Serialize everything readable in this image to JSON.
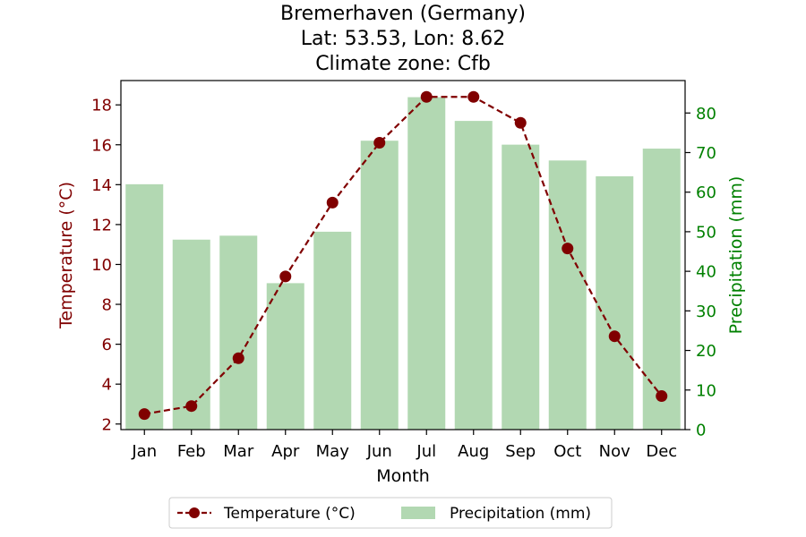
{
  "title_lines": [
    "Bremerhaven (Germany)",
    "Lat: 53.53, Lon: 8.62",
    "Climate zone: Cfb"
  ],
  "colors": {
    "temperature": "#800000",
    "precipitation": "#008000",
    "precipitation_bar": "#b2d8b2"
  },
  "chart_data": {
    "type": "bar",
    "categories": [
      "Jan",
      "Feb",
      "Mar",
      "Apr",
      "May",
      "Jun",
      "Jul",
      "Aug",
      "Sep",
      "Oct",
      "Nov",
      "Dec"
    ],
    "series": [
      {
        "name": "Temperature (°C)",
        "type": "line",
        "axis": "left",
        "values": [
          2.5,
          2.9,
          5.3,
          9.4,
          13.1,
          16.1,
          18.4,
          18.4,
          17.1,
          10.8,
          6.4,
          3.4
        ]
      },
      {
        "name": "Precipitation (mm)",
        "type": "bar",
        "axis": "right",
        "values": [
          62,
          48,
          49,
          37,
          50,
          73,
          84,
          78,
          72,
          68,
          64,
          71
        ]
      }
    ],
    "xlabel": "Month",
    "ylabel_left": "Temperature (°C)",
    "ylabel_right": "Precipitation (mm)",
    "ylim_left": [
      1.72,
      19.22
    ],
    "ylim_right": [
      0,
      88.2
    ],
    "yticks_left": [
      2,
      4,
      6,
      8,
      10,
      12,
      14,
      16,
      18
    ],
    "yticks_right": [
      0,
      10,
      20,
      30,
      40,
      50,
      60,
      70,
      80
    ],
    "legend": [
      "Temperature (°C)",
      "Precipitation (mm)"
    ],
    "legend_position": "bottom-center",
    "grid": false
  }
}
